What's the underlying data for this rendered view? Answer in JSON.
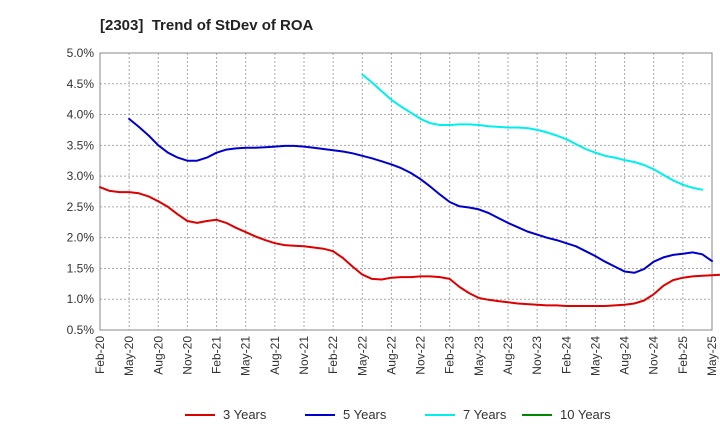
{
  "chart_data": {
    "type": "line",
    "title": "[2303]  Trend of StDev of ROA",
    "xlabel": "",
    "ylabel": "",
    "x_ticks": [
      "Feb-20",
      "May-20",
      "Aug-20",
      "Nov-20",
      "Feb-21",
      "May-21",
      "Aug-21",
      "Nov-21",
      "Feb-22",
      "May-22",
      "Aug-22",
      "Nov-22",
      "Feb-23",
      "May-23",
      "Aug-23",
      "Nov-23",
      "Feb-24",
      "May-24",
      "Aug-24",
      "Nov-24",
      "Feb-25",
      "May-25"
    ],
    "y_ticks": [
      "0.5%",
      "1.0%",
      "1.5%",
      "2.0%",
      "2.5%",
      "3.0%",
      "3.5%",
      "4.0%",
      "4.5%",
      "5.0%"
    ],
    "ylim": [
      0.5,
      5.0
    ],
    "y_unit": "%",
    "grid": true,
    "legend_position": "bottom",
    "series": [
      {
        "name": "3 Years",
        "color": "#dd0000",
        "start": "Feb-20",
        "values": [
          2.82,
          2.76,
          2.74,
          2.74,
          2.72,
          2.67,
          2.59,
          2.5,
          2.38,
          2.27,
          2.24,
          2.27,
          2.29,
          2.24,
          2.16,
          2.09,
          2.02,
          1.96,
          1.91,
          1.88,
          1.87,
          1.86,
          1.84,
          1.82,
          1.78,
          1.67,
          1.53,
          1.4,
          1.33,
          1.32,
          1.35,
          1.36,
          1.36,
          1.37,
          1.37,
          1.36,
          1.33,
          1.2,
          1.1,
          1.02,
          0.99,
          0.97,
          0.95,
          0.93,
          0.92,
          0.91,
          0.9,
          0.9,
          0.89,
          0.89,
          0.89,
          0.89,
          0.89,
          0.9,
          0.91,
          0.93,
          0.98,
          1.08,
          1.22,
          1.31,
          1.35,
          1.37,
          1.38,
          1.39,
          1.4,
          1.41
        ]
      },
      {
        "name": "5 Years",
        "color": "#0000cc",
        "start": "May-20",
        "values": [
          3.93,
          3.8,
          3.66,
          3.5,
          3.38,
          3.3,
          3.25,
          3.25,
          3.3,
          3.38,
          3.43,
          3.45,
          3.46,
          3.46,
          3.47,
          3.48,
          3.49,
          3.49,
          3.48,
          3.46,
          3.44,
          3.42,
          3.4,
          3.37,
          3.33,
          3.29,
          3.24,
          3.19,
          3.13,
          3.05,
          2.95,
          2.83,
          2.7,
          2.58,
          2.51,
          2.49,
          2.46,
          2.4,
          2.32,
          2.24,
          2.17,
          2.1,
          2.05,
          2.0,
          1.96,
          1.91,
          1.86,
          1.78,
          1.7,
          1.61,
          1.53,
          1.45,
          1.43,
          1.49,
          1.61,
          1.68,
          1.72,
          1.74,
          1.76,
          1.73,
          1.62
        ]
      },
      {
        "name": "7 Years",
        "color": "#00eeee",
        "start": "May-22",
        "values": [
          4.65,
          4.52,
          4.38,
          4.24,
          4.13,
          4.03,
          3.93,
          3.86,
          3.83,
          3.83,
          3.84,
          3.84,
          3.83,
          3.81,
          3.8,
          3.79,
          3.79,
          3.78,
          3.75,
          3.71,
          3.66,
          3.6,
          3.52,
          3.44,
          3.38,
          3.33,
          3.3,
          3.26,
          3.23,
          3.18,
          3.11,
          3.02,
          2.93,
          2.86,
          2.81,
          2.78
        ]
      },
      {
        "name": "10 Years",
        "color": "#008800",
        "start": "",
        "values": []
      }
    ]
  }
}
